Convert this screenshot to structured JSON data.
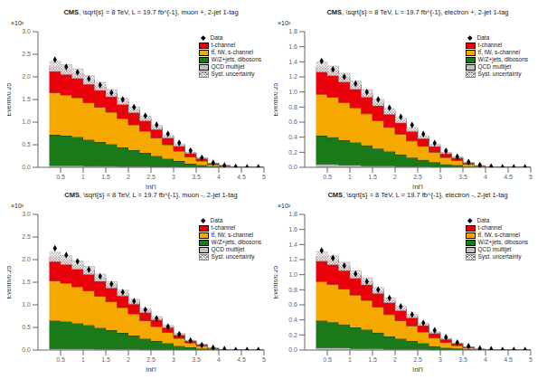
{
  "chart_data": [
    {
      "type": "histogram",
      "title": "CMS, \\sqrt{s} = 8 TeV, L = 19.7 fb^{-1}, muon +, 2-jet 1-tag",
      "xlabel": "|ηj′|",
      "ylabel": "Events/0.25",
      "annotations": [
        "×10³"
      ],
      "stacked": true,
      "legend": "upper right",
      "grid": false,
      "xlim": [
        0,
        5
      ],
      "xticks": [
        0.5,
        1,
        1.5,
        2,
        2.5,
        3,
        3.5,
        4,
        4.5,
        5
      ],
      "ylim": [
        0,
        3
      ],
      "yticks": [
        {
          "value": 0,
          "label": "0.0"
        },
        {
          "value": 0.5,
          "label": "0.5"
        },
        {
          "value": 1,
          "label": "1.0"
        },
        {
          "value": 1.5,
          "label": "1.5"
        },
        {
          "value": 2,
          "label": "2.0"
        },
        {
          "value": 2.5,
          "label": "2.5"
        },
        {
          "value": 3,
          "label": "3.0"
        }
      ],
      "bins": [
        0.25,
        0.5,
        0.75,
        1.0,
        1.25,
        1.5,
        1.75,
        2.0,
        2.25,
        2.5,
        2.75,
        3.0,
        3.25,
        3.5,
        3.75,
        4.0,
        4.25,
        4.5,
        4.75,
        5.0
      ],
      "series": [
        {
          "name": "Data",
          "type": "scatter",
          "marker": "diamond",
          "color": "#000000",
          "values": [
            2.38,
            2.22,
            2.1,
            1.96,
            1.82,
            1.65,
            1.5,
            1.33,
            1.14,
            0.94,
            0.74,
            0.54,
            0.37,
            0.21,
            0.1,
            0.04,
            0.01,
            0.0,
            0.0
          ]
        },
        {
          "name": "t-channel",
          "type": "bar",
          "color": "#e8000a",
          "values": [
            0.58,
            0.56,
            0.53,
            0.5,
            0.46,
            0.42,
            0.38,
            0.33,
            0.28,
            0.23,
            0.18,
            0.13,
            0.09,
            0.06,
            0.03,
            0.01,
            0.0,
            0.0,
            0.0
          ]
        },
        {
          "name": "tt̄, tW, s-channel",
          "type": "bar",
          "color": "#f5a800",
          "values": [
            0.93,
            0.9,
            0.87,
            0.82,
            0.77,
            0.71,
            0.64,
            0.56,
            0.48,
            0.4,
            0.31,
            0.22,
            0.15,
            0.09,
            0.04,
            0.02,
            0.01,
            0.0,
            0.0
          ]
        },
        {
          "name": "W/Z+jets, dibosons",
          "type": "bar",
          "color": "#1a7a1a",
          "values": [
            0.68,
            0.66,
            0.63,
            0.58,
            0.53,
            0.48,
            0.42,
            0.36,
            0.3,
            0.24,
            0.18,
            0.13,
            0.08,
            0.05,
            0.02,
            0.01,
            0.0,
            0.0,
            0.0
          ]
        },
        {
          "name": "QCD multijet",
          "type": "bar",
          "color": "#c0c0c0",
          "values": [
            0.04,
            0.04,
            0.04,
            0.03,
            0.03,
            0.03,
            0.02,
            0.02,
            0.02,
            0.01,
            0.01,
            0.01,
            0.0,
            0.0,
            0.0,
            0.0,
            0.0,
            0.0,
            0.0
          ]
        },
        {
          "name": "Syst. uncertainty",
          "type": "band",
          "color": "#888888",
          "low": [
            2.1185,
            2.052,
            1.9665,
            1.8335,
            1.7005,
            1.558,
            1.387,
            1.2065,
            1.026,
            0.836,
            0.646,
            0.4655,
            0.304,
            0.19,
            0.0855,
            0.038,
            0.0095,
            0,
            0
          ],
          "high": [
            2.3415,
            2.268,
            2.1735,
            2.0265,
            1.8795,
            1.722,
            1.533,
            1.3335,
            1.134,
            0.924,
            0.714,
            0.5145,
            0.336,
            0.21,
            0.0945,
            0.042,
            0.0105,
            0,
            0
          ]
        }
      ]
    },
    {
      "type": "histogram",
      "title": "CMS, \\sqrt{s} = 8 TeV, L = 19.7 fb^{-1}, electron +, 2-jet 1-tag",
      "xlabel": "|ηj′|",
      "ylabel": "Events/0.25",
      "annotations": [
        "×10²"
      ],
      "stacked": true,
      "legend": "upper right",
      "grid": false,
      "xlim": [
        0,
        5
      ],
      "xticks": [
        0.5,
        1,
        1.5,
        2,
        2.5,
        3,
        3.5,
        4,
        4.5,
        5
      ],
      "ylim": [
        0,
        1.8
      ],
      "yticks": [
        {
          "value": 0,
          "label": "0.0"
        },
        {
          "value": 0.2,
          "label": "0.2"
        },
        {
          "value": 0.4,
          "label": "0.4"
        },
        {
          "value": 0.6,
          "label": "0.6"
        },
        {
          "value": 0.8,
          "label": "0.8"
        },
        {
          "value": 1,
          "label": "1.0"
        },
        {
          "value": 1.2,
          "label": "1.2"
        },
        {
          "value": 1.4,
          "label": "1.4"
        },
        {
          "value": 1.6,
          "label": "1.6"
        },
        {
          "value": 1.8,
          "label": "1.8"
        }
      ],
      "bins": [
        0.25,
        0.5,
        0.75,
        1.0,
        1.25,
        1.5,
        1.75,
        2.0,
        2.25,
        2.5,
        2.75,
        3.0,
        3.25,
        3.5,
        3.75,
        4.0,
        4.25,
        4.5,
        4.75,
        5.0
      ],
      "series": [
        {
          "name": "Data",
          "type": "scatter",
          "marker": "diamond",
          "color": "#000000",
          "values": [
            1.41,
            1.3,
            1.2,
            1.11,
            1.0,
            0.9,
            0.79,
            0.67,
            0.56,
            0.44,
            0.32,
            0.22,
            0.14,
            0.07,
            0.03,
            0.01,
            0.0,
            0.0,
            0.0
          ]
        },
        {
          "name": "t-channel",
          "type": "bar",
          "color": "#e8000a",
          "values": [
            0.36,
            0.35,
            0.33,
            0.3,
            0.27,
            0.24,
            0.21,
            0.18,
            0.15,
            0.12,
            0.09,
            0.06,
            0.04,
            0.02,
            0.01,
            0.0,
            0.0,
            0.0,
            0.0
          ]
        },
        {
          "name": "tt̄, tW, s-channel",
          "type": "bar",
          "color": "#f5a800",
          "values": [
            0.55,
            0.53,
            0.5,
            0.46,
            0.42,
            0.37,
            0.32,
            0.27,
            0.22,
            0.18,
            0.13,
            0.09,
            0.06,
            0.03,
            0.01,
            0.0,
            0.0,
            0.0,
            0.0
          ]
        },
        {
          "name": "W/Z+jets, dibosons",
          "type": "bar",
          "color": "#1a7a1a",
          "values": [
            0.38,
            0.36,
            0.33,
            0.3,
            0.27,
            0.23,
            0.19,
            0.16,
            0.12,
            0.09,
            0.07,
            0.04,
            0.03,
            0.01,
            0.0,
            0.0,
            0.0,
            0.0,
            0.0
          ]
        },
        {
          "name": "QCD multijet",
          "type": "bar",
          "color": "#c0c0c0",
          "values": [
            0.04,
            0.04,
            0.03,
            0.03,
            0.02,
            0.02,
            0.02,
            0.01,
            0.01,
            0.01,
            0.0,
            0.0,
            0.0,
            0.0,
            0.0,
            0.0,
            0.0,
            0.0,
            0.0
          ]
        },
        {
          "name": "Syst. uncertainty",
          "type": "band",
          "color": "#888888",
          "low": [
            1.2635,
            1.216,
            1.1305,
            1.0355,
            0.931,
            0.817,
            0.703,
            0.589,
            0.475,
            0.38,
            0.2755,
            0.1805,
            0.1235,
            0.057,
            0.019,
            0,
            0,
            0,
            0
          ],
          "high": [
            1.3965,
            1.344,
            1.2495,
            1.1445,
            1.029,
            0.903,
            0.777,
            0.651,
            0.525,
            0.42,
            0.3045,
            0.1995,
            0.1365,
            0.063,
            0.021,
            0,
            0,
            0,
            0
          ]
        }
      ]
    },
    {
      "type": "histogram",
      "title": "CMS, \\sqrt{s} = 8 TeV, L = 19.7 fb^{-1}, muon -, 2-jet 1-tag",
      "xlabel": "|ηj′|",
      "ylabel": "Events/0.25",
      "annotations": [
        "×10³"
      ],
      "stacked": true,
      "legend": "upper right",
      "grid": false,
      "xlim": [
        0,
        5
      ],
      "xticks": [
        0.5,
        1,
        1.5,
        2,
        2.5,
        3,
        3.5,
        4,
        4.5,
        5
      ],
      "ylim": [
        0,
        3
      ],
      "yticks": [
        {
          "value": 0,
          "label": "0.0"
        },
        {
          "value": 0.5,
          "label": "0.5"
        },
        {
          "value": 1,
          "label": "1.0"
        },
        {
          "value": 1.5,
          "label": "1.5"
        },
        {
          "value": 2,
          "label": "2.0"
        },
        {
          "value": 2.5,
          "label": "2.5"
        },
        {
          "value": 3,
          "label": "3.0"
        }
      ],
      "bins": [
        0.25,
        0.5,
        0.75,
        1.0,
        1.25,
        1.5,
        1.75,
        2.0,
        2.25,
        2.5,
        2.75,
        3.0,
        3.25,
        3.5,
        3.75,
        4.0,
        4.25,
        4.5,
        4.75,
        5.0
      ],
      "series": [
        {
          "name": "Data",
          "type": "scatter",
          "marker": "diamond",
          "color": "#000000",
          "values": [
            2.25,
            2.1,
            1.96,
            1.78,
            1.63,
            1.46,
            1.28,
            1.08,
            0.89,
            0.7,
            0.52,
            0.35,
            0.21,
            0.11,
            0.05,
            0.02,
            0.0,
            0.0,
            0.0
          ]
        },
        {
          "name": "t-channel",
          "type": "bar",
          "color": "#e8000a",
          "values": [
            0.53,
            0.51,
            0.48,
            0.45,
            0.41,
            0.37,
            0.32,
            0.27,
            0.22,
            0.18,
            0.13,
            0.09,
            0.05,
            0.03,
            0.01,
            0.0,
            0.0,
            0.0,
            0.0
          ]
        },
        {
          "name": "tt̄, tW, s-channel",
          "type": "bar",
          "color": "#f5a800",
          "values": [
            0.88,
            0.85,
            0.81,
            0.76,
            0.7,
            0.63,
            0.56,
            0.48,
            0.4,
            0.32,
            0.24,
            0.17,
            0.1,
            0.06,
            0.02,
            0.01,
            0.0,
            0.0,
            0.0
          ]
        },
        {
          "name": "W/Z+jets, dibosons",
          "type": "bar",
          "color": "#1a7a1a",
          "values": [
            0.62,
            0.6,
            0.56,
            0.52,
            0.47,
            0.42,
            0.36,
            0.3,
            0.24,
            0.19,
            0.14,
            0.09,
            0.06,
            0.03,
            0.01,
            0.0,
            0.0,
            0.0,
            0.0
          ]
        },
        {
          "name": "QCD multijet",
          "type": "bar",
          "color": "#c0c0c0",
          "values": [
            0.03,
            0.03,
            0.03,
            0.03,
            0.02,
            0.02,
            0.02,
            0.02,
            0.01,
            0.01,
            0.01,
            0.0,
            0.0,
            0.0,
            0.0,
            0.0,
            0.0,
            0.0,
            0.0
          ]
        },
        {
          "name": "Syst. uncertainty",
          "type": "band",
          "color": "#888888",
          "low": [
            1.957,
            1.8905,
            1.786,
            1.672,
            1.52,
            1.368,
            1.197,
            1.0165,
            0.8265,
            0.665,
            0.494,
            0.3325,
            0.1995,
            0.114,
            0.038,
            0.0095,
            0,
            0,
            0
          ],
          "high": [
            2.163,
            2.0895,
            1.974,
            1.848,
            1.68,
            1.512,
            1.323,
            1.1235,
            0.9135,
            0.735,
            0.546,
            0.3675,
            0.2205,
            0.126,
            0.042,
            0.0105,
            0,
            0,
            0
          ]
        }
      ]
    },
    {
      "type": "histogram",
      "title": "CMS, \\sqrt{s} = 8 TeV, L = 19.7 fb^{-1}, electron -, 2-jet 1-tag",
      "xlabel": "|ηj′|",
      "ylabel": "Events/0.25",
      "annotations": [
        "×10²"
      ],
      "stacked": true,
      "legend": "upper right",
      "grid": false,
      "xlim": [
        0,
        5
      ],
      "xticks": [
        0.5,
        1,
        1.5,
        2,
        2.5,
        3,
        3.5,
        4,
        4.5,
        5
      ],
      "ylim": [
        0,
        1.8
      ],
      "yticks": [
        {
          "value": 0,
          "label": "0.0"
        },
        {
          "value": 0.2,
          "label": "0.2"
        },
        {
          "value": 0.4,
          "label": "0.4"
        },
        {
          "value": 0.6,
          "label": "0.6"
        },
        {
          "value": 0.8,
          "label": "0.8"
        },
        {
          "value": 1,
          "label": "1.0"
        },
        {
          "value": 1.2,
          "label": "1.2"
        },
        {
          "value": 1.4,
          "label": "1.4"
        },
        {
          "value": 1.6,
          "label": "1.6"
        },
        {
          "value": 1.8,
          "label": "1.8"
        }
      ],
      "bins": [
        0.25,
        0.5,
        0.75,
        1.0,
        1.25,
        1.5,
        1.75,
        2.0,
        2.25,
        2.5,
        2.75,
        3.0,
        3.25,
        3.5,
        3.75,
        4.0,
        4.25,
        4.5,
        4.75,
        5.0
      ],
      "series": [
        {
          "name": "Data",
          "type": "scatter",
          "marker": "diamond",
          "color": "#000000",
          "values": [
            1.32,
            1.22,
            1.12,
            1.01,
            0.91,
            0.8,
            0.69,
            0.58,
            0.47,
            0.36,
            0.26,
            0.17,
            0.1,
            0.05,
            0.02,
            0.01,
            0.0,
            0.0,
            0.0
          ]
        },
        {
          "name": "t-channel",
          "type": "bar",
          "color": "#e8000a",
          "values": [
            0.33,
            0.32,
            0.3,
            0.27,
            0.25,
            0.22,
            0.19,
            0.16,
            0.13,
            0.1,
            0.07,
            0.05,
            0.03,
            0.01,
            0.0,
            0.0,
            0.0,
            0.0,
            0.0
          ]
        },
        {
          "name": "tt̄, tW, s-channel",
          "type": "bar",
          "color": "#f5a800",
          "values": [
            0.52,
            0.5,
            0.47,
            0.43,
            0.39,
            0.34,
            0.29,
            0.24,
            0.2,
            0.15,
            0.11,
            0.07,
            0.04,
            0.02,
            0.01,
            0.0,
            0.0,
            0.0,
            0.0
          ]
        },
        {
          "name": "W/Z+jets, dibosons",
          "type": "bar",
          "color": "#1a7a1a",
          "values": [
            0.36,
            0.34,
            0.31,
            0.28,
            0.25,
            0.21,
            0.17,
            0.14,
            0.11,
            0.08,
            0.05,
            0.03,
            0.02,
            0.01,
            0.0,
            0.0,
            0.0,
            0.0,
            0.0
          ]
        },
        {
          "name": "QCD multijet",
          "type": "bar",
          "color": "#c0c0c0",
          "values": [
            0.03,
            0.03,
            0.03,
            0.02,
            0.02,
            0.02,
            0.01,
            0.01,
            0.01,
            0.01,
            0.0,
            0.0,
            0.0,
            0.0,
            0.0,
            0.0,
            0.0,
            0.0,
            0.0
          ]
        },
        {
          "name": "Syst. uncertainty",
          "type": "band",
          "color": "#888888",
          "low": [
            1.178,
            1.1305,
            1.0545,
            0.95,
            0.8645,
            0.7505,
            0.627,
            0.5225,
            0.4275,
            0.323,
            0.2185,
            0.1425,
            0.0855,
            0.038,
            0.0095,
            0,
            0,
            0,
            0
          ],
          "high": [
            1.302,
            1.2495,
            1.1655,
            1.05,
            0.9555,
            0.8295,
            0.693,
            0.5775,
            0.4725,
            0.357,
            0.2415,
            0.1575,
            0.0945,
            0.042,
            0.0105,
            0,
            0,
            0,
            0
          ]
        }
      ]
    }
  ]
}
